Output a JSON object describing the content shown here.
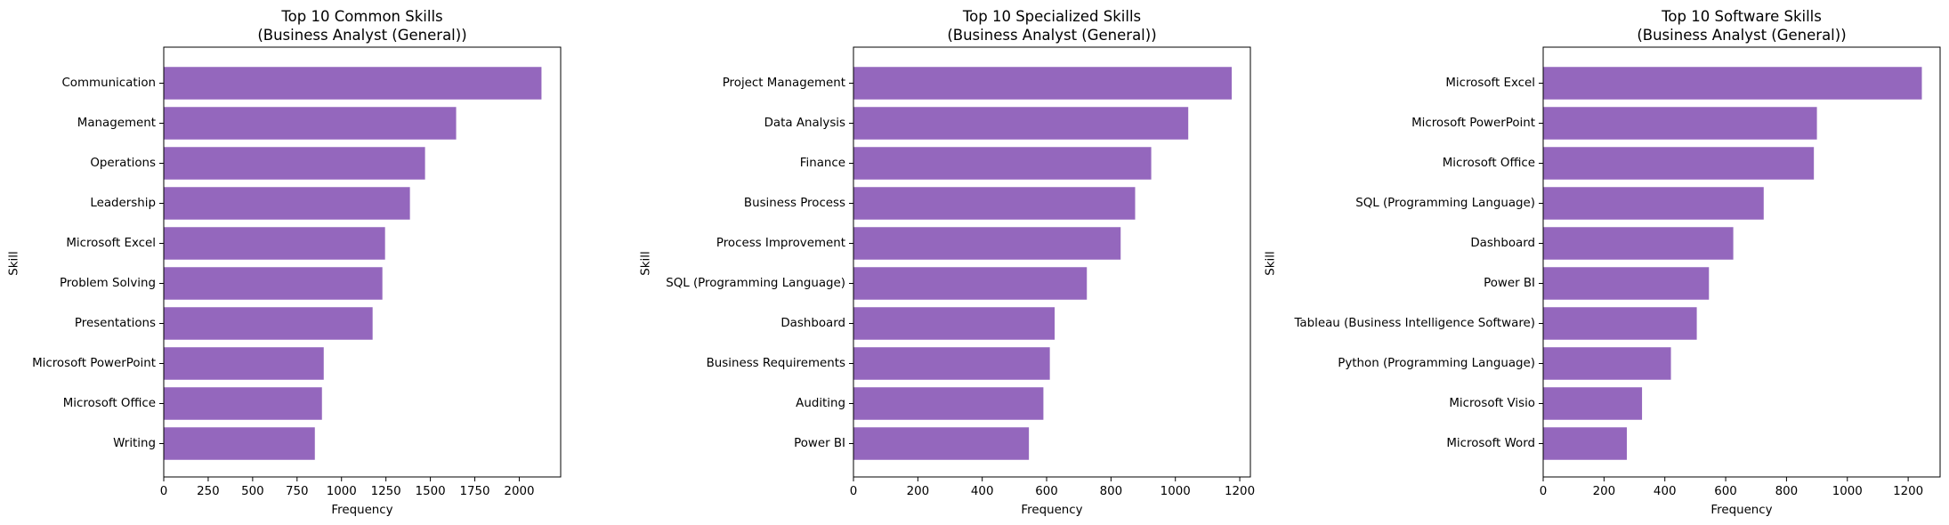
{
  "colors": {
    "bar": "#9467bd",
    "axis": "#000000",
    "background": "#ffffff"
  },
  "chart_data": [
    {
      "type": "bar",
      "orientation": "horizontal",
      "title": "Top 10 Common Skills",
      "subtitle": "(Business Analyst (General))",
      "xlabel": "Frequency",
      "ylabel": "Skill",
      "xlim": [
        0,
        2233
      ],
      "xticks": [
        0,
        250,
        500,
        750,
        1000,
        1250,
        1500,
        1750,
        2000
      ],
      "grid": false,
      "categories": [
        "Communication",
        "Management",
        "Operations",
        "Leadership",
        "Microsoft Excel",
        "Problem Solving",
        "Presentations",
        "Microsoft PowerPoint",
        "Microsoft Office",
        "Writing"
      ],
      "values": [
        2125,
        1645,
        1470,
        1385,
        1245,
        1230,
        1175,
        900,
        890,
        850
      ]
    },
    {
      "type": "bar",
      "orientation": "horizontal",
      "title": "Top 10 Specialized Skills",
      "subtitle": "(Business Analyst (General))",
      "xlabel": "Frequency",
      "ylabel": "Skill",
      "xlim": [
        0,
        1233
      ],
      "xticks": [
        0,
        200,
        400,
        600,
        800,
        1000,
        1200
      ],
      "grid": false,
      "categories": [
        "Project Management",
        "Data Analysis",
        "Finance",
        "Business Process",
        "Process Improvement",
        "SQL (Programming Language)",
        "Dashboard",
        "Business Requirements",
        "Auditing",
        "Power BI"
      ],
      "values": [
        1175,
        1040,
        925,
        875,
        830,
        725,
        625,
        610,
        590,
        545
      ]
    },
    {
      "type": "bar",
      "orientation": "horizontal",
      "title": "Top 10 Software Skills",
      "subtitle": "(Business Analyst (General))",
      "xlabel": "Frequency",
      "ylabel": "Skill",
      "xlim": [
        0,
        1305
      ],
      "xticks": [
        0,
        200,
        400,
        600,
        800,
        1000,
        1200
      ],
      "grid": false,
      "categories": [
        "Microsoft Excel",
        "Microsoft PowerPoint",
        "Microsoft Office",
        "SQL (Programming Language)",
        "Dashboard",
        "Power BI",
        "Tableau (Business Intelligence Software)",
        "Python (Programming Language)",
        "Microsoft Visio",
        "Microsoft Word"
      ],
      "values": [
        1245,
        900,
        890,
        725,
        625,
        545,
        505,
        420,
        325,
        275
      ]
    }
  ]
}
